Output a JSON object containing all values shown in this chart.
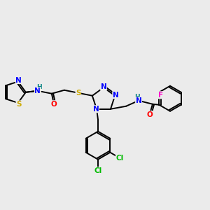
{
  "background_color": "#ebebeb",
  "bond_color": "#000000",
  "atom_colors": {
    "N": "#0000ff",
    "S": "#ccaa00",
    "O": "#ff0000",
    "F": "#ff00cc",
    "Cl": "#00bb00",
    "H": "#008080",
    "C": "#000000"
  },
  "figsize": [
    3.0,
    3.0
  ],
  "dpi": 100,
  "lw": 1.4,
  "fs": 7.5
}
